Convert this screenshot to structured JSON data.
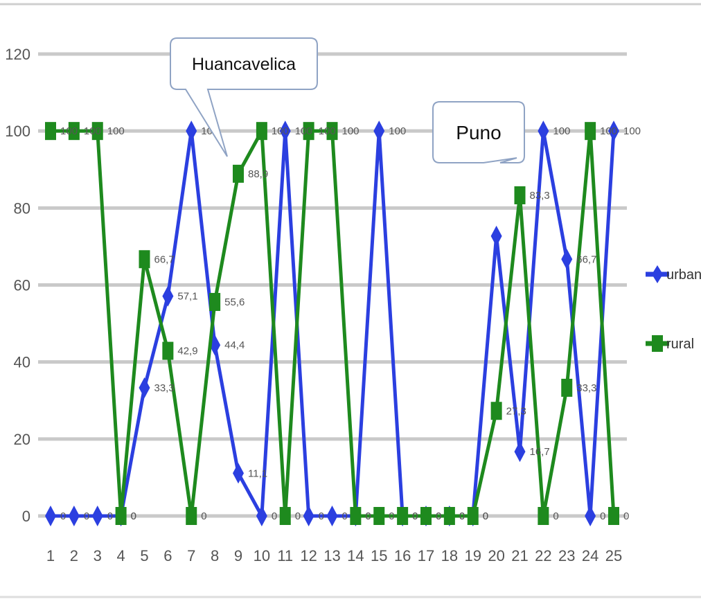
{
  "chart_data": {
    "type": "line",
    "categories": [
      "1",
      "2",
      "3",
      "4",
      "5",
      "6",
      "7",
      "8",
      "9",
      "10",
      "11",
      "12",
      "13",
      "14",
      "15",
      "16",
      "17",
      "18",
      "19",
      "20",
      "21",
      "22",
      "23",
      "24",
      "25"
    ],
    "ylim": [
      0,
      120
    ],
    "yticks": [
      "0",
      "20",
      "40",
      "60",
      "80",
      "100",
      "120"
    ],
    "grid": true,
    "legend_position": "right",
    "series": [
      {
        "name": "urbano",
        "color": "#2b3fe0",
        "marker": "diamond",
        "values": [
          0,
          0,
          0,
          0,
          33.3,
          57.1,
          100,
          44.4,
          11.1,
          0,
          100,
          0,
          0,
          0,
          100,
          0,
          0,
          0,
          0,
          72.7,
          16.7,
          100,
          66.7,
          0,
          100
        ],
        "labels": [
          "0",
          "0",
          "0",
          "0",
          "33,3",
          "57,1",
          "100",
          "44,4",
          "11,1",
          "0",
          "100",
          "0",
          "0",
          "0",
          "100",
          "0",
          "0",
          "0",
          "0",
          "",
          "16,7",
          "100",
          "66,7",
          "0",
          "100"
        ]
      },
      {
        "name": "rural",
        "color": "#1e8a1e",
        "marker": "square",
        "values": [
          100,
          100,
          100,
          0,
          66.7,
          42.9,
          0,
          55.6,
          88.9,
          100,
          0,
          100,
          100,
          0,
          0,
          0,
          0,
          0,
          0,
          27.3,
          83.3,
          0,
          33.3,
          100,
          0
        ],
        "labels": [
          "100",
          "100",
          "100",
          "0",
          "66,7",
          "42,9",
          "0",
          "55,6",
          "88,9",
          "100",
          "0",
          "100",
          "100",
          "0",
          "0",
          "0",
          "0",
          "0",
          "0",
          "27,3",
          "83,3",
          "0",
          "33,3",
          "100",
          "0"
        ]
      }
    ],
    "annotations": [
      {
        "text": "Huancavelica",
        "category_index": 8
      },
      {
        "text": "Puno",
        "category_index": 20
      }
    ]
  }
}
